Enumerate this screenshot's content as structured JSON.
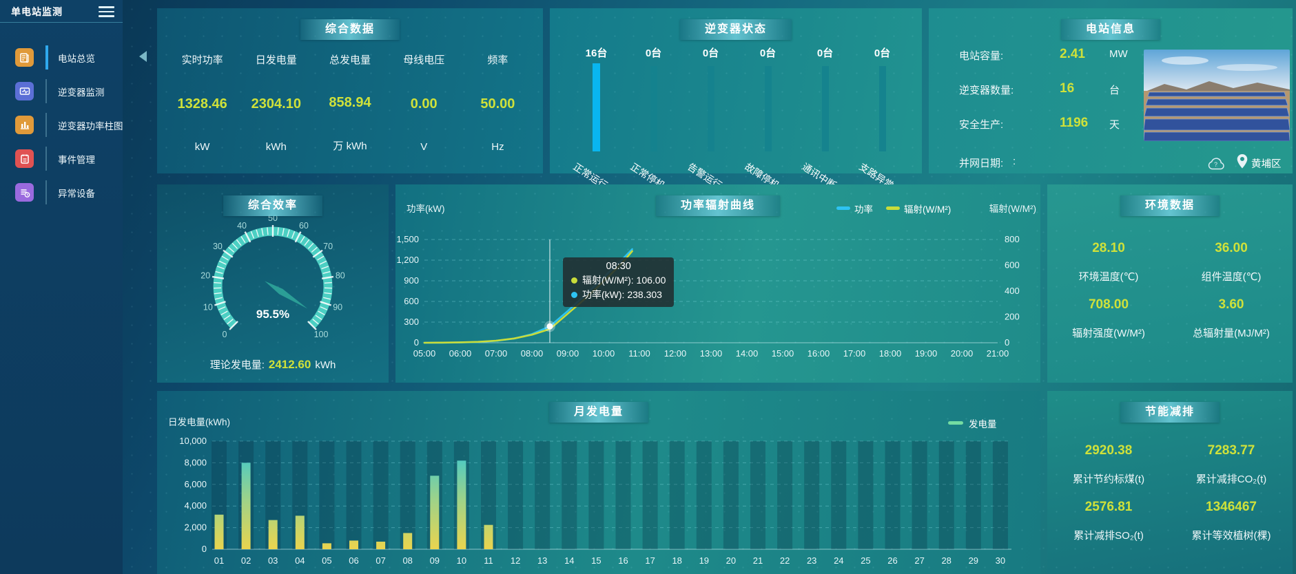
{
  "accent_colors": {
    "value_yellow": "#cfe13a",
    "power_blue": "#2ec3f2",
    "radiation_yellow": "#c9dc3a",
    "bar_teal": "#15828e",
    "highlight_blue": "#09b6f0",
    "legend_green": "#74dba2"
  },
  "sidebar": {
    "title": "单电站监测",
    "menu_icon": "hamburger-menu-icon",
    "items": [
      {
        "label": "电站总览",
        "icon": "station-overview-icon",
        "active": true
      },
      {
        "label": "逆变器监测",
        "icon": "inverter-monitor-icon",
        "active": false
      },
      {
        "label": "逆变器功率柱图",
        "icon": "inverter-power-bars-icon",
        "active": false
      },
      {
        "label": "事件管理",
        "icon": "event-management-icon",
        "active": false
      },
      {
        "label": "异常设备",
        "icon": "abnormal-device-icon",
        "active": false
      }
    ]
  },
  "overview": {
    "title": "综合数据",
    "metrics": [
      {
        "label": "实时功率",
        "value": "1328.46",
        "unit": "kW"
      },
      {
        "label": "日发电量",
        "value": "2304.10",
        "unit": "kWh"
      },
      {
        "label": "总发电量",
        "value": "858.94",
        "unit": "万 kWh"
      },
      {
        "label": "母线电压",
        "value": "0.00",
        "unit": "V"
      },
      {
        "label": "频率",
        "value": "50.00",
        "unit": "Hz"
      }
    ]
  },
  "inverter_status": {
    "title": "逆变器状态",
    "bars": [
      {
        "count": "16台",
        "label": "正常运行",
        "highlight": true
      },
      {
        "count": "0台",
        "label": "正常停机",
        "highlight": false
      },
      {
        "count": "0台",
        "label": "告警运行",
        "highlight": false
      },
      {
        "count": "0台",
        "label": "故障停机",
        "highlight": false
      },
      {
        "count": "0台",
        "label": "通讯中断",
        "highlight": false
      },
      {
        "count": "0台",
        "label": "支路异常",
        "highlight": false
      }
    ]
  },
  "station_info": {
    "title": "电站信息",
    "rows": [
      {
        "label": "电站容量:",
        "value": "2.41",
        "unit": "MW"
      },
      {
        "label": "逆变器数量:",
        "value": "16",
        "unit": "台"
      },
      {
        "label": "安全生产:",
        "value": "1196",
        "unit": "天"
      }
    ],
    "grid_date_label": "并网日期:",
    "grid_date_value": ":",
    "icons": [
      "weather-cloud-icon",
      "location-pin-icon"
    ],
    "location": "黄埔区",
    "photo": "solar-farm-photo"
  },
  "efficiency": {
    "title": "综合效率",
    "footer_label": "理论发电量:",
    "footer_value": "2412.60",
    "footer_unit": "kWh"
  },
  "environment": {
    "title": "环境数据",
    "metrics": [
      {
        "value": "28.10",
        "label": "环境温度(℃)"
      },
      {
        "value": "36.00",
        "label": "组件温度(℃)"
      },
      {
        "value": "708.00",
        "label": "辐射强度(W/M²)"
      },
      {
        "value": "3.60",
        "label": "总辐射量(MJ/M²)"
      }
    ]
  },
  "saving": {
    "title": "节能减排",
    "metrics": [
      {
        "value": "2920.38",
        "label": "累计节约标煤(t)"
      },
      {
        "value": "7283.77",
        "label": "累计减排CO₂(t)"
      },
      {
        "value": "2576.81",
        "label": "累计减排SO₂(t)"
      },
      {
        "value": "1346467",
        "label": "累计等效植树(棵)"
      }
    ]
  },
  "chart_data": [
    {
      "id": "power_radiation",
      "type": "line",
      "title": "功率辐射曲线",
      "ylabel_left": "功率(kW)",
      "ylabel_right": "辐射(W/M²)",
      "ylim_left": [
        0,
        1500
      ],
      "yticks_left": [
        "0",
        "300",
        "600",
        "900",
        "1,200",
        "1,500"
      ],
      "ylim_right": [
        0,
        800
      ],
      "yticks_right": [
        "0",
        "200",
        "400",
        "600",
        "800"
      ],
      "x_ticks": [
        "05:00",
        "06:00",
        "07:00",
        "08:00",
        "09:00",
        "10:00",
        "11:00",
        "12:00",
        "13:00",
        "14:00",
        "15:00",
        "16:00",
        "17:00",
        "18:00",
        "19:00",
        "20:00",
        "21:00"
      ],
      "grid": "dashed-horizontal",
      "legend_position": "top-right",
      "legend": [
        {
          "name": "功率",
          "color": "#2ec3f2"
        },
        {
          "name": "辐射(W/M²)",
          "color": "#c9dc3a"
        }
      ],
      "series": [
        {
          "name": "功率",
          "axis": "left",
          "color": "#2ec3f2",
          "points": [
            [
              5,
              0
            ],
            [
              5.5,
              1
            ],
            [
              6,
              4
            ],
            [
              6.5,
              10
            ],
            [
              7,
              28
            ],
            [
              7.5,
              60
            ],
            [
              8,
              125
            ],
            [
              8.5,
              238.3
            ],
            [
              9,
              460
            ],
            [
              9.5,
              700
            ],
            [
              10,
              950
            ],
            [
              10.5,
              1200
            ],
            [
              10.8,
              1360
            ]
          ]
        },
        {
          "name": "辐射(W/M²)",
          "axis": "right",
          "color": "#c9dc3a",
          "points": [
            [
              5,
              0
            ],
            [
              5.5,
              1
            ],
            [
              6,
              3
            ],
            [
              6.5,
              7
            ],
            [
              7,
              16
            ],
            [
              7.5,
              33
            ],
            [
              8,
              62
            ],
            [
              8.5,
              106
            ],
            [
              9,
              225
            ],
            [
              9.5,
              345
            ],
            [
              10,
              475
            ],
            [
              10.5,
              612
            ],
            [
              10.8,
              710
            ]
          ]
        }
      ],
      "tooltip": {
        "time": "08:30",
        "x_hour": 8.5,
        "marker_left_value": 238.303,
        "rows": [
          {
            "color": "#c9dc3a",
            "text": "辐射(W/M²): 106.00"
          },
          {
            "color": "#2ec3f2",
            "text": "功率(kW): 238.303"
          }
        ]
      }
    },
    {
      "id": "monthly_energy",
      "type": "bar",
      "title": "月发电量",
      "ylabel": "日发电量(kWh)",
      "ylim": [
        0,
        10000
      ],
      "yticks": [
        "0",
        "2,000",
        "4,000",
        "6,000",
        "8,000",
        "10,000"
      ],
      "legend": [
        {
          "name": "发电量",
          "color": "#74dba2"
        }
      ],
      "categories": [
        "01",
        "02",
        "03",
        "04",
        "05",
        "06",
        "07",
        "08",
        "09",
        "10",
        "11",
        "12",
        "13",
        "14",
        "15",
        "16",
        "17",
        "18",
        "19",
        "20",
        "21",
        "22",
        "23",
        "24",
        "25",
        "26",
        "27",
        "28",
        "29",
        "30"
      ],
      "values": [
        3200,
        8000,
        2700,
        3100,
        550,
        800,
        700,
        1500,
        6800,
        8200,
        2250,
        0,
        0,
        0,
        0,
        0,
        0,
        0,
        0,
        0,
        0,
        0,
        0,
        0,
        0,
        0,
        0,
        0,
        0,
        0
      ],
      "bar_gradient": [
        "#ead44e",
        "#9fd388",
        "#2ec6d8"
      ]
    },
    {
      "id": "inverter_status",
      "type": "bar",
      "title": "逆变器状态",
      "categories": [
        "正常运行",
        "正常停机",
        "告警运行",
        "故障停机",
        "通讯中断",
        "支路异常"
      ],
      "values": [
        16,
        0,
        0,
        0,
        0,
        0
      ],
      "unit": "台"
    },
    {
      "id": "efficiency_gauge",
      "type": "gauge",
      "title": "综合效率",
      "value": 95.5,
      "display": "95.5%",
      "min": 0,
      "max": 100,
      "tick_labels": [
        0,
        10,
        20,
        30,
        40,
        50,
        60,
        70,
        80,
        90,
        100
      ]
    }
  ]
}
